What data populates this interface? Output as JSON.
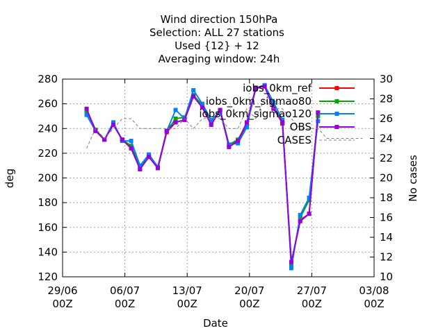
{
  "chart_data": {
    "type": "line",
    "title_lines": [
      "Wind direction 150hPa",
      "Selection: ALL      27 stations",
      "Used {12} + 12",
      "Averaging window: 24h"
    ],
    "xlabel": "Date",
    "ylabel": "deg",
    "y2label": "No cases",
    "x_range_days": [
      0,
      35
    ],
    "ylim": [
      120,
      280
    ],
    "y2lim": [
      10,
      30
    ],
    "x_ticks": [
      {
        "day": 0,
        "line1": "29/06",
        "line2": "00Z"
      },
      {
        "day": 7,
        "line1": "06/07",
        "line2": "00Z"
      },
      {
        "day": 14,
        "line1": "13/07",
        "line2": "00Z"
      },
      {
        "day": 21,
        "line1": "20/07",
        "line2": "00Z"
      },
      {
        "day": 28,
        "line1": "27/07",
        "line2": "00Z"
      },
      {
        "day": 35,
        "line1": "03/08",
        "line2": "00Z"
      }
    ],
    "y_ticks": [
      "120",
      "140",
      "160",
      "180",
      "200",
      "220",
      "240",
      "260",
      "280"
    ],
    "y2_ticks": [
      "10",
      "12",
      "14",
      "16",
      "18",
      "20",
      "22",
      "24",
      "26",
      "28",
      "30"
    ],
    "grid": true,
    "legend_position": "top-right",
    "x_days": [
      2.7,
      3.7,
      4.7,
      5.7,
      6.7,
      7.7,
      8.7,
      9.7,
      10.7,
      11.7,
      12.7,
      13.7,
      14.7,
      15.7,
      16.7,
      17.7,
      18.7,
      19.7,
      20.7,
      21.7,
      22.7,
      23.7,
      24.7,
      25.7,
      26.7,
      27.7,
      28.7,
      29.7,
      30.7
    ],
    "series": [
      {
        "name": "iobs_0km_ref",
        "color": "#ff0000",
        "values": [
          255,
          239,
          231,
          243,
          231,
          224,
          208,
          217,
          208,
          237,
          245,
          247,
          266,
          258,
          245,
          255,
          226,
          230,
          243,
          272,
          275,
          257,
          244,
          131,
          166,
          171,
          252,
          null,
          null
        ]
      },
      {
        "name": "iobs_0km_sigmao80",
        "color": "#00aa00",
        "values": [
          254,
          239,
          231,
          244,
          231,
          226,
          209,
          218,
          208,
          238,
          248,
          249,
          267,
          259,
          246,
          255,
          227,
          231,
          244,
          272,
          275,
          258,
          245,
          130,
          168,
          182,
          250,
          null,
          null
        ]
      },
      {
        "name": "iobs_0km_sigmao120",
        "color": "#0080ff",
        "values": [
          251,
          238,
          231,
          245,
          230,
          230,
          210,
          219,
          209,
          238,
          255,
          248,
          271,
          260,
          247,
          253,
          227,
          228,
          241,
          273,
          275,
          261,
          247,
          127,
          170,
          184,
          246,
          null,
          null
        ]
      },
      {
        "name": "OBS",
        "color": "#9900dd",
        "values": [
          256,
          238,
          231,
          243,
          231,
          224,
          207,
          217,
          208,
          238,
          245,
          247,
          266,
          257,
          243,
          255,
          225,
          230,
          245,
          273,
          274,
          256,
          245,
          132,
          165,
          171,
          253,
          null,
          null
        ]
      },
      {
        "name": "CASES",
        "color": "#808080",
        "dashed": true,
        "axis": "y2",
        "x_days": [
          2.7,
          3.7,
          4.7,
          5.7,
          6.7,
          7.7,
          8.7,
          9.7,
          10.7,
          11.7,
          12.7,
          13.7,
          14.7,
          15.7,
          16.7,
          17.7,
          18.7,
          19.7,
          20.7,
          21.7,
          22.7,
          23.7,
          24.7,
          25.7,
          26.7,
          27.7,
          28.7,
          29.7,
          30.7,
          31.7,
          32.7,
          33.7
        ],
        "values": [
          23,
          25,
          24,
          25,
          26,
          26,
          25,
          25,
          25,
          25,
          25,
          26,
          25,
          26,
          26,
          26,
          25,
          25,
          27,
          26,
          28,
          27,
          27,
          26,
          25,
          25,
          25,
          24,
          24,
          24,
          24,
          24
        ]
      }
    ]
  }
}
